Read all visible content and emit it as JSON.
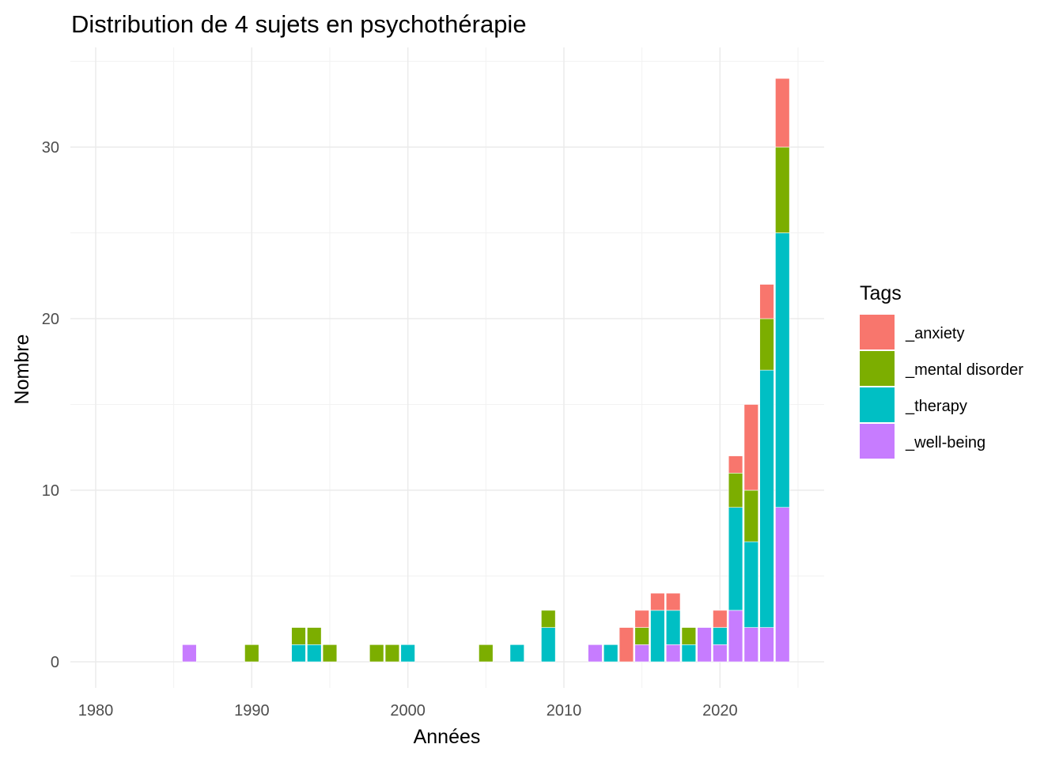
{
  "chart_data": {
    "type": "bar",
    "stacked": true,
    "title": "Distribution de 4 sujets en psychothérapie",
    "xlabel": "Années",
    "ylabel": "Nombre",
    "xlim": [
      1979,
      2026
    ],
    "ylim": [
      -1.5,
      35
    ],
    "xticks": [
      "1980",
      "1990",
      "2000",
      "2010",
      "2020"
    ],
    "yticks": [
      "0",
      "10",
      "20",
      "30"
    ],
    "grid": true,
    "legend": {
      "title": "Tags",
      "position": "right"
    },
    "x": [
      1986,
      1990,
      1993,
      1994,
      1995,
      1998,
      1999,
      2000,
      2005,
      2007,
      2009,
      2012,
      2013,
      2014,
      2015,
      2016,
      2017,
      2018,
      2019,
      2020,
      2021,
      2022,
      2023,
      2024
    ],
    "series": [
      {
        "name": "_anxiety",
        "color": "#F8766D",
        "values": [
          0,
          0,
          0,
          0,
          0,
          0,
          0,
          0,
          0,
          0,
          0,
          0,
          0,
          2,
          1,
          1,
          1,
          0,
          0,
          1,
          1,
          5,
          2,
          4
        ]
      },
      {
        "name": "_mental disorder",
        "color": "#7CAE00",
        "values": [
          0,
          1,
          1,
          1,
          1,
          1,
          1,
          0,
          1,
          0,
          1,
          0,
          0,
          0,
          1,
          0,
          0,
          1,
          0,
          0,
          2,
          3,
          3,
          5
        ]
      },
      {
        "name": "_therapy",
        "color": "#00BFC4",
        "values": [
          0,
          0,
          1,
          1,
          0,
          0,
          0,
          1,
          0,
          1,
          2,
          0,
          1,
          0,
          0,
          3,
          2,
          1,
          0,
          1,
          6,
          5,
          15,
          16
        ]
      },
      {
        "name": "_well-being",
        "color": "#C77CFF",
        "values": [
          1,
          0,
          0,
          0,
          0,
          0,
          0,
          0,
          0,
          0,
          0,
          1,
          0,
          0,
          1,
          0,
          1,
          0,
          2,
          1,
          3,
          2,
          2,
          9
        ]
      }
    ]
  }
}
